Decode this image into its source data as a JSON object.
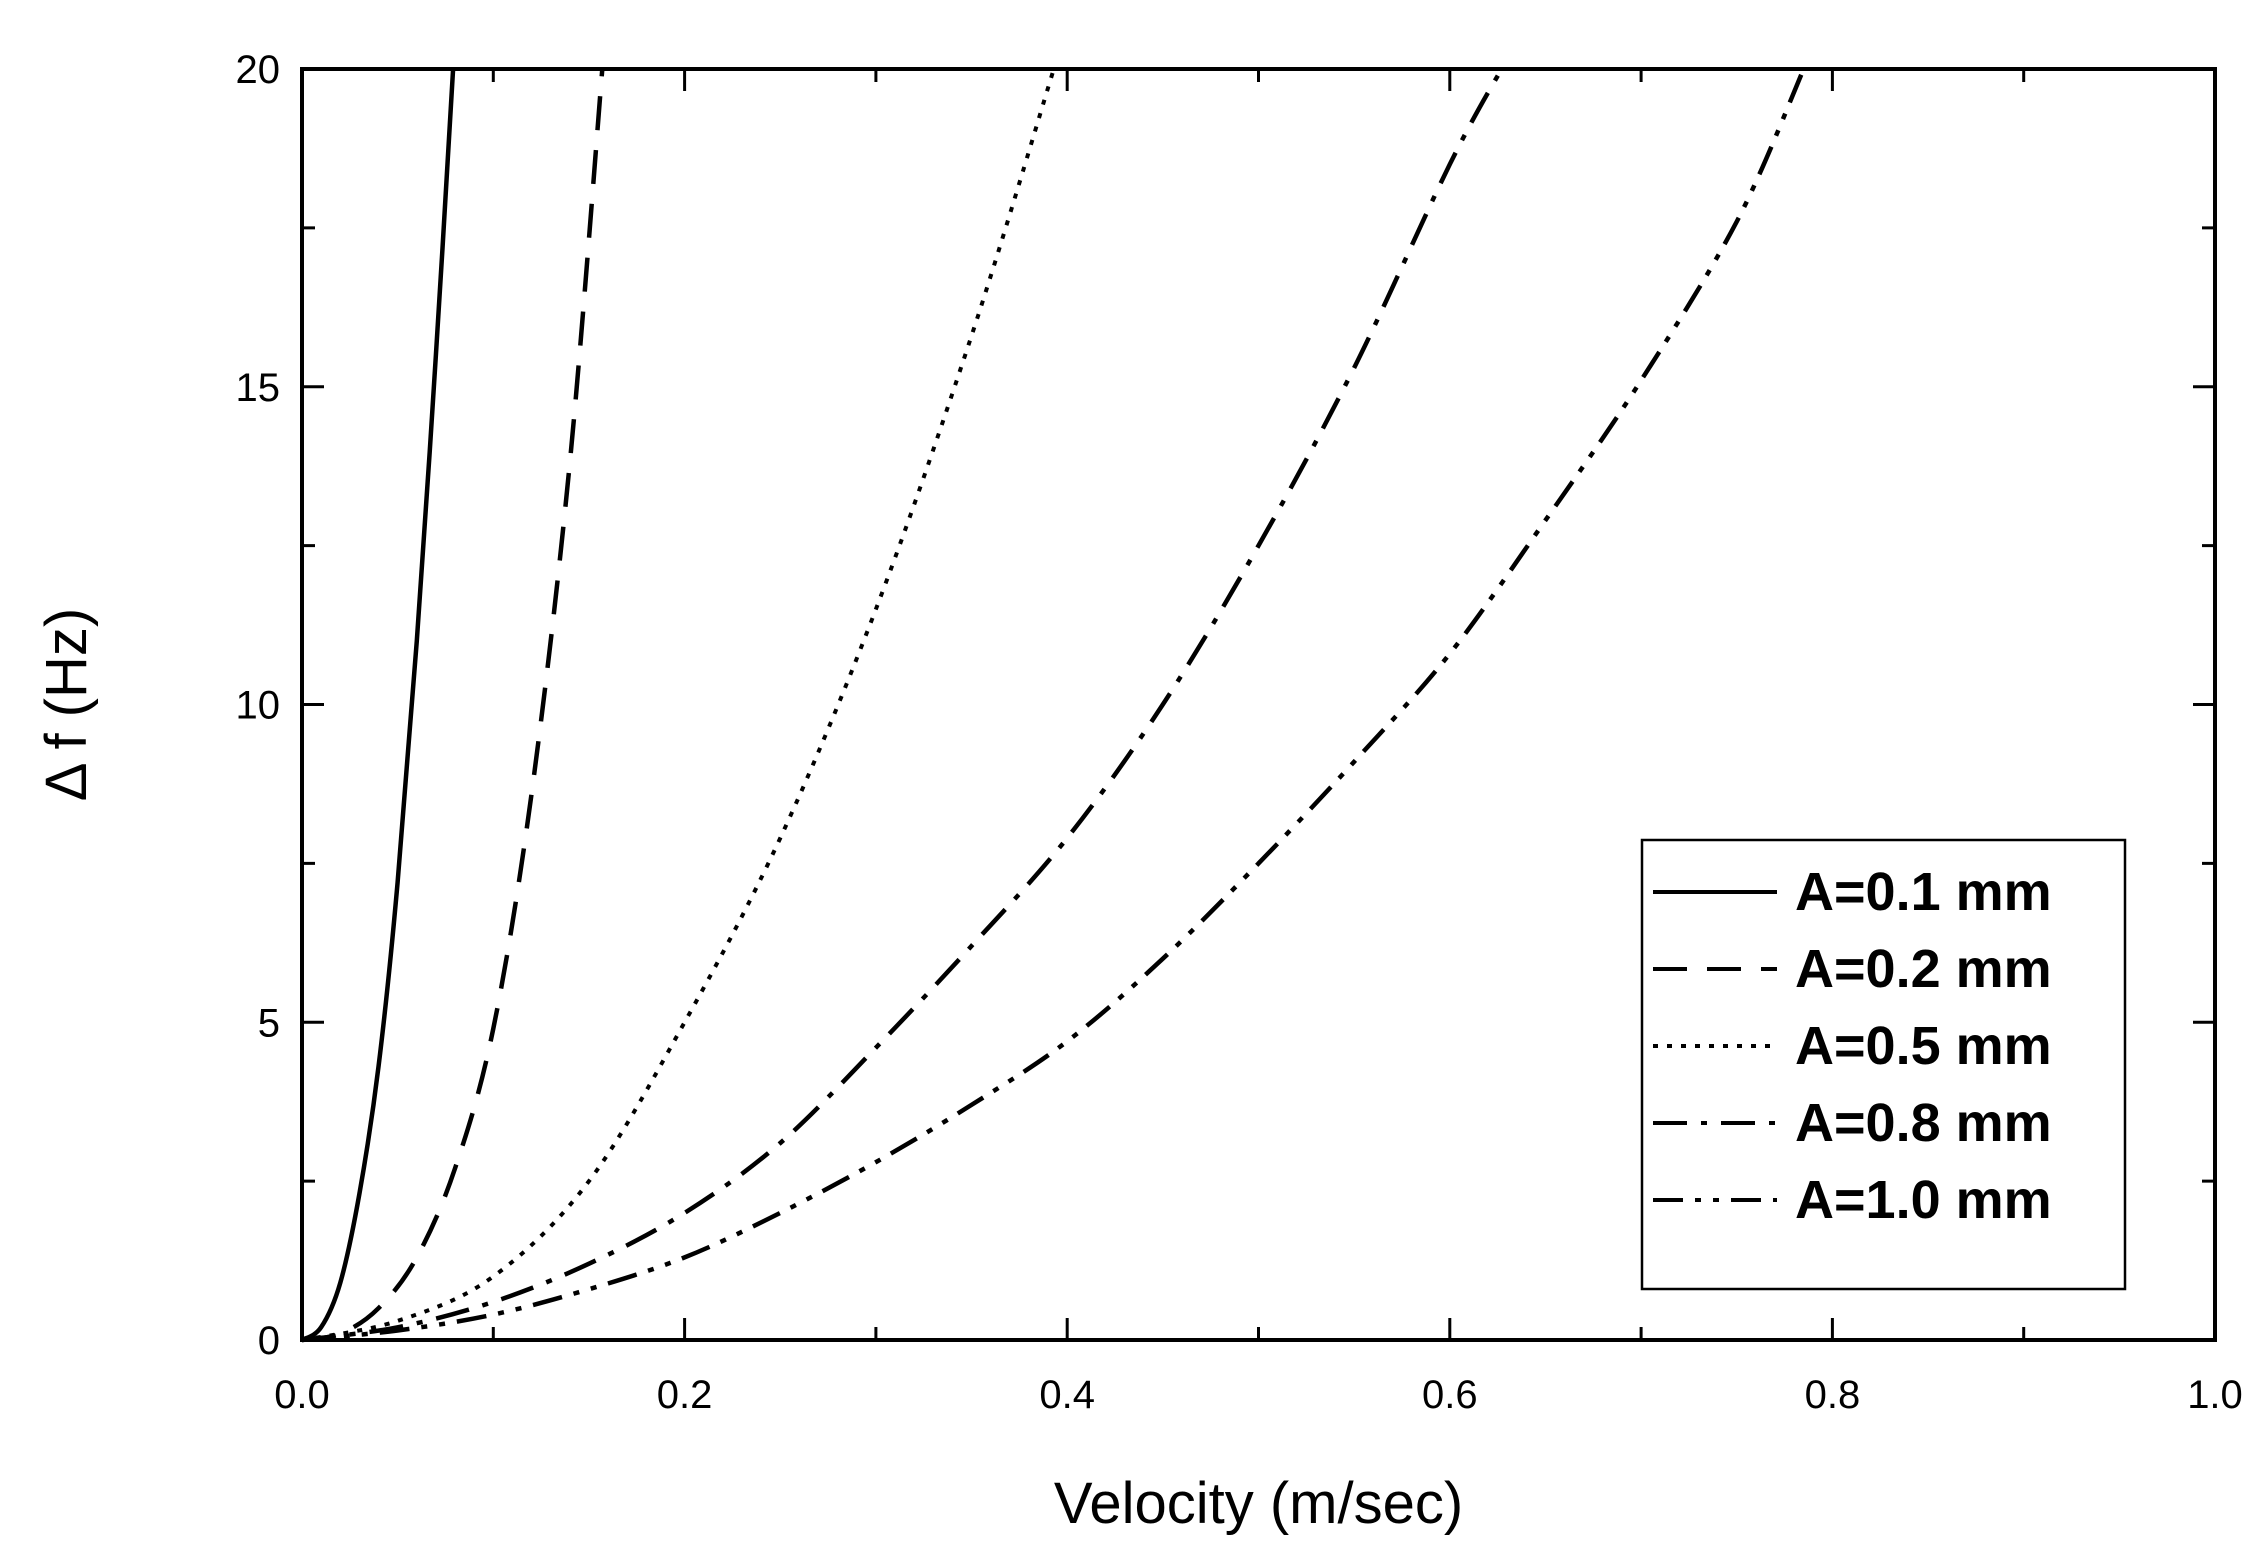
{
  "chart_data": {
    "type": "line",
    "xlabel": "Velocity (m/sec)",
    "ylabel": "Δ f (Hz)",
    "xlim": [
      0,
      1.0
    ],
    "ylim": [
      0,
      20
    ],
    "x_ticks": [
      "0.0",
      "0.2",
      "0.4",
      "0.6",
      "0.8",
      "1.0"
    ],
    "x_tick_values": [
      0,
      0.2,
      0.4,
      0.6,
      0.8,
      1.0
    ],
    "y_ticks": [
      "0",
      "5",
      "10",
      "15",
      "20"
    ],
    "y_tick_values": [
      0,
      5,
      10,
      15,
      20
    ],
    "grid": false,
    "legend_position": "bottom-right",
    "series": [
      {
        "name": "A=0.1 mm",
        "style": "solid",
        "x": [
          0,
          0.01,
          0.02,
          0.03,
          0.04,
          0.05,
          0.06,
          0.07,
          0.079
        ],
        "y": [
          0,
          0.2,
          0.9,
          2.3,
          4.3,
          7.2,
          11.0,
          15.5,
          20.0
        ]
      },
      {
        "name": "A=0.2 mm",
        "style": "dash",
        "x": [
          0,
          0.02,
          0.04,
          0.06,
          0.08,
          0.1,
          0.12,
          0.14,
          0.157
        ],
        "y": [
          0,
          0.1,
          0.5,
          1.3,
          2.7,
          4.9,
          8.6,
          13.8,
          20.0
        ]
      },
      {
        "name": "A=0.5 mm",
        "style": "dot",
        "x": [
          0,
          0.05,
          0.1,
          0.15,
          0.2,
          0.25,
          0.3,
          0.35,
          0.393
        ],
        "y": [
          0,
          0.3,
          1.0,
          2.5,
          5.0,
          7.9,
          11.5,
          15.8,
          20.0
        ]
      },
      {
        "name": "A=0.8 mm",
        "style": "dashdot",
        "x": [
          0,
          0.05,
          0.1,
          0.15,
          0.2,
          0.25,
          0.3,
          0.35,
          0.4,
          0.45,
          0.5,
          0.55,
          0.6,
          0.627
        ],
        "y": [
          0,
          0.2,
          0.6,
          1.2,
          2.0,
          3.1,
          4.6,
          6.2,
          7.9,
          10.0,
          12.5,
          15.3,
          18.5,
          20.0
        ]
      },
      {
        "name": "A=1.0 mm",
        "style": "dashdotdot",
        "x": [
          0,
          0.05,
          0.1,
          0.15,
          0.2,
          0.25,
          0.3,
          0.35,
          0.4,
          0.45,
          0.5,
          0.55,
          0.6,
          0.65,
          0.7,
          0.75,
          0.785
        ],
        "y": [
          0,
          0.15,
          0.4,
          0.8,
          1.3,
          2.0,
          2.8,
          3.7,
          4.7,
          6.0,
          7.5,
          9.1,
          10.8,
          12.9,
          15.1,
          17.6,
          20.0
        ]
      }
    ]
  }
}
